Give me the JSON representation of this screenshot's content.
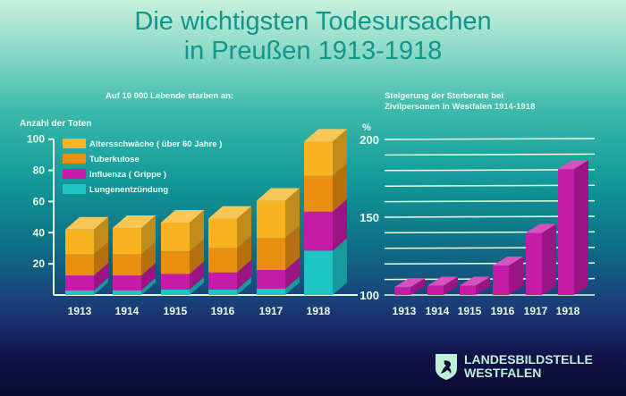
{
  "title_line1": "Die wichtigsten Todesursachen",
  "title_line2": "in Preußen 1913-1918",
  "logo": {
    "line1": "LANDESBILDSTELLE",
    "line2": "WESTFALEN"
  },
  "colors": {
    "yellow": "#f7b320",
    "orange": "#ea8f12",
    "magenta": "#c61aa8",
    "cyan": "#1ec6c6",
    "axis": "#e8ffe0"
  },
  "chart_data": [
    {
      "type": "bar",
      "stacked": true,
      "subtitle": "Auf 10 000 Lebende starben an:",
      "ylabel": "Anzahl der Toten",
      "ylim": [
        0,
        100
      ],
      "yticks": [
        20,
        40,
        60,
        80,
        100
      ],
      "categories": [
        "1913",
        "1914",
        "1915",
        "1916",
        "1917",
        "1918"
      ],
      "legend_position": "top-left",
      "series": [
        {
          "name": "Lungenentzündung",
          "color_key": "cyan",
          "values": [
            3,
            3,
            3.5,
            3.5,
            4,
            28.5
          ]
        },
        {
          "name": "Influenza ( Grippe )",
          "color_key": "magenta",
          "values": [
            9.5,
            9.5,
            10,
            11,
            12,
            25
          ]
        },
        {
          "name": "Tuberkulose",
          "color_key": "orange",
          "values": [
            13.5,
            13.5,
            14.5,
            15.5,
            20.5,
            23
          ]
        },
        {
          "name": "Altersschwäche ( über 60 Jahre )",
          "color_key": "yellow",
          "values": [
            16,
            17,
            18.5,
            19,
            24,
            22
          ]
        }
      ],
      "legend_order": [
        3,
        2,
        1,
        0
      ]
    },
    {
      "type": "bar",
      "subtitle_line1": "Steigerung der Sterberate bei",
      "subtitle_line2": "Zivilpersonen in Westfalen 1914-1918",
      "ylabel": "%",
      "ylim": [
        100,
        200
      ],
      "yticks": [
        100,
        150,
        200
      ],
      "grid_step": 10,
      "grid": true,
      "categories": [
        "1913",
        "1914",
        "1915",
        "1916",
        "1917",
        "1918"
      ],
      "values": [
        105,
        106,
        106,
        119,
        140,
        181
      ]
    }
  ]
}
